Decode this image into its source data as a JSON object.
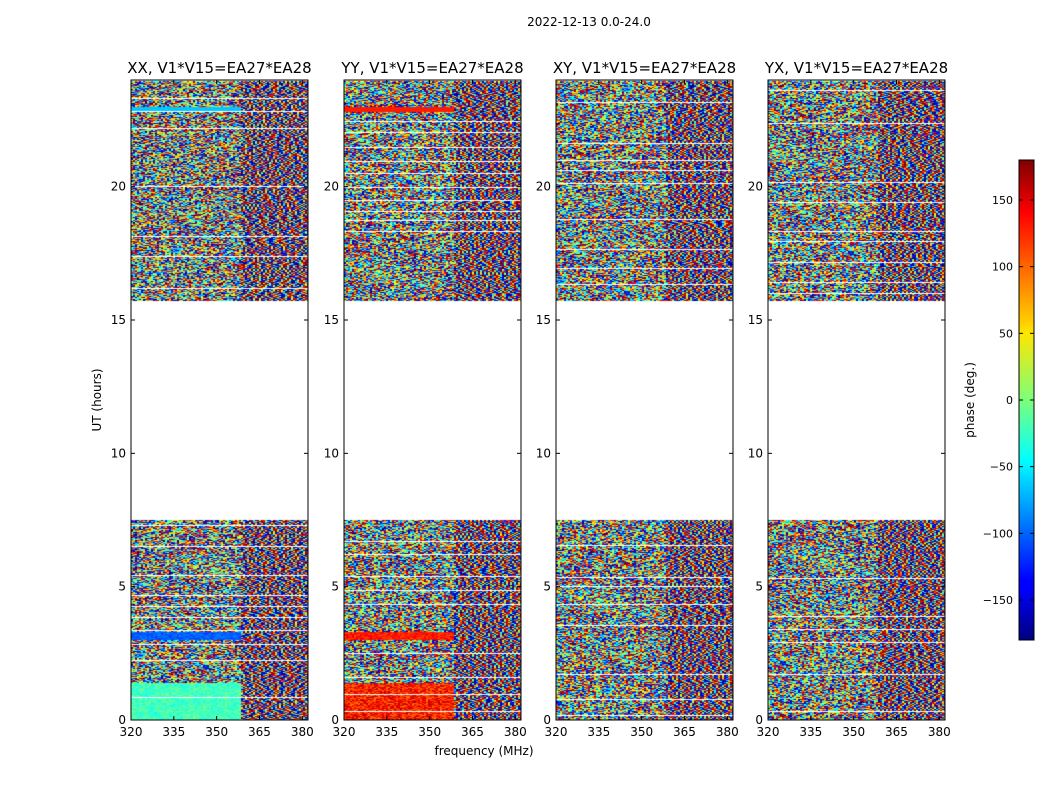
{
  "figure": {
    "suptitle": "2022-12-13 0.0-24.0"
  },
  "chart_data": {
    "type": "heatmap",
    "suptitle": "2022-12-13 0.0-24.0",
    "xlabel": "frequency (MHz)",
    "ylabel": "UT (hours)",
    "xlim": [
      320,
      382
    ],
    "ylim": [
      0,
      24
    ],
    "xticks": [
      "320",
      "335",
      "350",
      "365",
      "380"
    ],
    "xtick_values": [
      320,
      335,
      350,
      365,
      380
    ],
    "yticks": [
      "0",
      "5",
      "10",
      "15",
      "20"
    ],
    "ytick_values": [
      0,
      5,
      10,
      15,
      20
    ],
    "no_data_ranges_hours": [
      [
        7.5,
        15.7
      ]
    ],
    "panels": [
      {
        "title": "XX, V1*V15=EA27*EA28",
        "polarization": "XX"
      },
      {
        "title": "YY, V1*V15=EA27*EA28",
        "polarization": "YY"
      },
      {
        "title": "XY, V1*V15=EA27*EA28",
        "polarization": "XY"
      },
      {
        "title": "YX, V1*V15=EA27*EA28",
        "polarization": "YX"
      }
    ],
    "colorbar": {
      "label": "phase (deg.)",
      "range": [
        -180,
        180
      ],
      "ticks": [
        "150",
        "100",
        "50",
        "0",
        "−50",
        "−100",
        "−150"
      ],
      "tick_values": [
        150,
        100,
        50,
        0,
        -50,
        -100,
        -150
      ],
      "colormap": "jet"
    }
  }
}
